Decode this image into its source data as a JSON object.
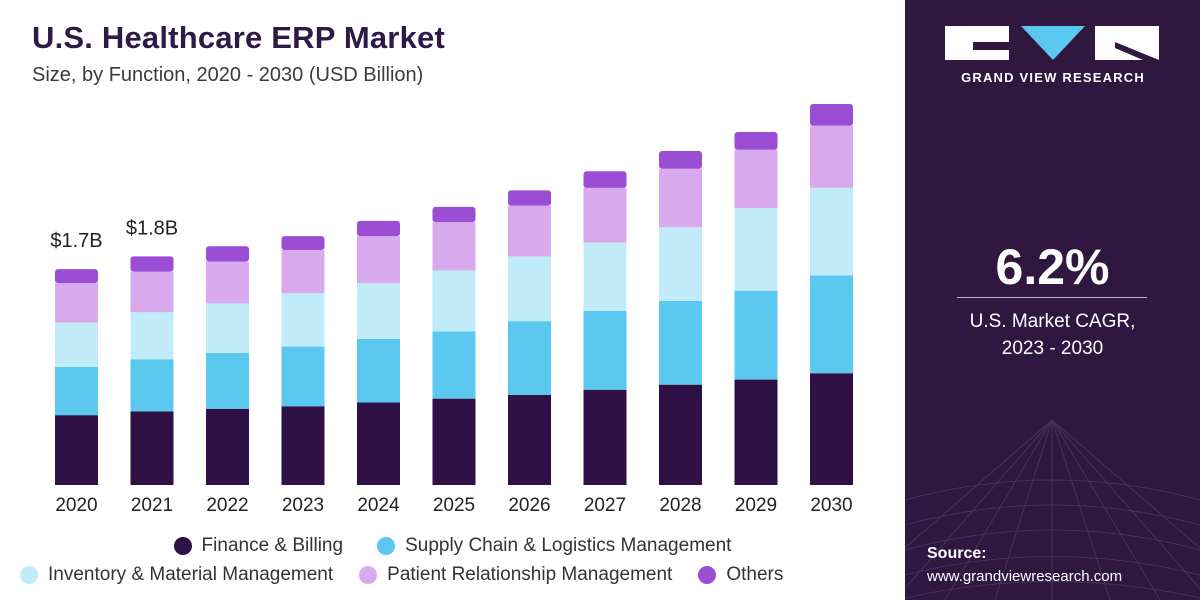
{
  "chart_data": {
    "type": "bar",
    "stacked": true,
    "title": "U.S. Healthcare ERP Market",
    "subtitle": "Size, by Function, 2020 - 2030 (USD Billion)",
    "categories": [
      "2020",
      "2021",
      "2022",
      "2023",
      "2024",
      "2025",
      "2026",
      "2027",
      "2028",
      "2029",
      "2030"
    ],
    "series": [
      {
        "name": "Finance & Billing",
        "color": "#2e1045",
        "values": [
          0.55,
          0.58,
          0.6,
          0.62,
          0.65,
          0.68,
          0.71,
          0.75,
          0.79,
          0.83,
          0.88
        ]
      },
      {
        "name": "Supply Chain & Logistics Management",
        "color": "#5ac8ef",
        "values": [
          0.38,
          0.41,
          0.44,
          0.47,
          0.5,
          0.53,
          0.58,
          0.62,
          0.66,
          0.7,
          0.77
        ]
      },
      {
        "name": "Inventory & Material Management",
        "color": "#c2ebfa",
        "values": [
          0.35,
          0.37,
          0.39,
          0.42,
          0.44,
          0.48,
          0.51,
          0.54,
          0.58,
          0.65,
          0.69
        ]
      },
      {
        "name": "Patient Relationship Management",
        "color": "#d8a9ec",
        "values": [
          0.31,
          0.32,
          0.33,
          0.34,
          0.37,
          0.38,
          0.4,
          0.43,
          0.46,
          0.46,
          0.49
        ]
      },
      {
        "name": "Others",
        "color": "#9b4ed3",
        "values": [
          0.11,
          0.12,
          0.12,
          0.11,
          0.12,
          0.12,
          0.12,
          0.13,
          0.14,
          0.14,
          0.17
        ]
      }
    ],
    "data_labels": [
      {
        "category": "2020",
        "text": "$1.7B"
      },
      {
        "category": "2021",
        "text": "$1.8B"
      }
    ],
    "grid": false,
    "legend_position": "bottom"
  },
  "brand": {
    "name": "GRAND VIEW RESEARCH",
    "panel_color": "#2f1740",
    "accent_color": "#5ac8ef"
  },
  "stat": {
    "value": "6.2%",
    "label_line1": "U.S. Market CAGR,",
    "label_line2": "2023 - 2030"
  },
  "source": {
    "label": "Source:",
    "url": "www.grandviewresearch.com"
  }
}
